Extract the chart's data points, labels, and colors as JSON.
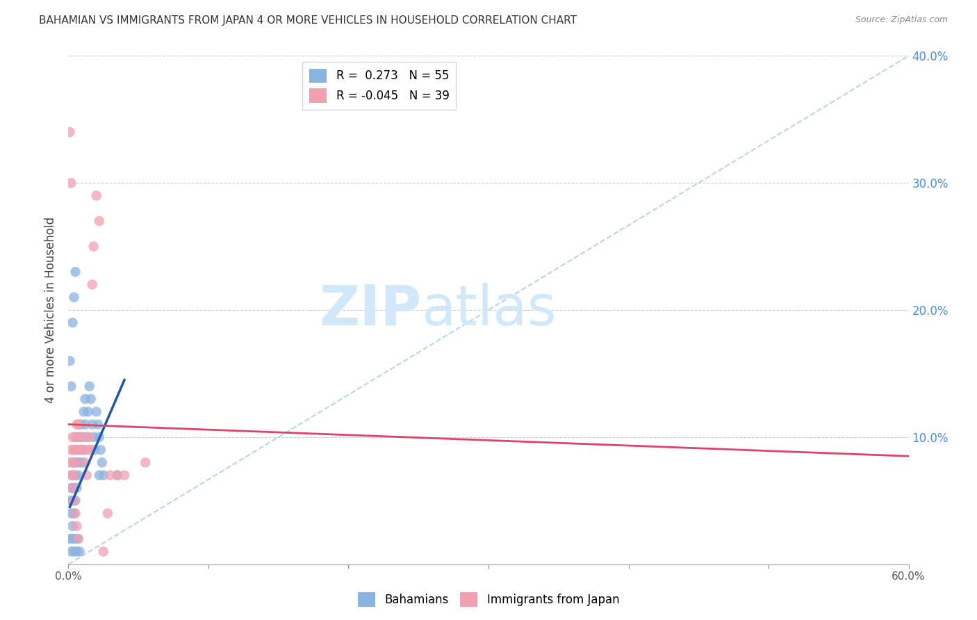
{
  "title": "BAHAMIAN VS IMMIGRANTS FROM JAPAN 4 OR MORE VEHICLES IN HOUSEHOLD CORRELATION CHART",
  "source": "Source: ZipAtlas.com",
  "ylabel": "4 or more Vehicles in Household",
  "xlim": [
    0.0,
    0.6
  ],
  "ylim": [
    0.0,
    0.4
  ],
  "xticks": [
    0.0,
    0.1,
    0.2,
    0.3,
    0.4,
    0.5,
    0.6
  ],
  "xticklabels_show": [
    "0.0%",
    "60.0%"
  ],
  "xticklabels_pos": [
    0.0,
    0.6
  ],
  "yticks": [
    0.1,
    0.2,
    0.3,
    0.4
  ],
  "yticklabels": [
    "10.0%",
    "20.0%",
    "30.0%",
    "40.0%"
  ],
  "blue_R": 0.273,
  "blue_N": 55,
  "pink_R": -0.045,
  "pink_N": 39,
  "blue_color": "#8ab4e0",
  "pink_color": "#f0a0b0",
  "blue_line_color": "#2255aa",
  "pink_line_color": "#dd4466",
  "ref_line_color": "#b8d4ee",
  "watermark_zip": "ZIP",
  "watermark_atlas": "atlas",
  "watermark_color": "#d0e8f8",
  "blue_scatter_x": [
    0.001,
    0.002,
    0.002,
    0.003,
    0.003,
    0.003,
    0.004,
    0.004,
    0.004,
    0.005,
    0.005,
    0.005,
    0.006,
    0.006,
    0.006,
    0.007,
    0.007,
    0.008,
    0.008,
    0.009,
    0.009,
    0.01,
    0.01,
    0.011,
    0.011,
    0.012,
    0.012,
    0.013,
    0.014,
    0.015,
    0.016,
    0.017,
    0.018,
    0.019,
    0.02,
    0.021,
    0.022,
    0.023,
    0.024,
    0.025,
    0.001,
    0.002,
    0.003,
    0.004,
    0.005,
    0.006,
    0.007,
    0.008,
    0.022,
    0.035,
    0.001,
    0.002,
    0.003,
    0.004,
    0.005
  ],
  "blue_scatter_y": [
    0.05,
    0.04,
    0.06,
    0.03,
    0.05,
    0.07,
    0.04,
    0.06,
    0.08,
    0.05,
    0.07,
    0.09,
    0.06,
    0.08,
    0.1,
    0.07,
    0.09,
    0.08,
    0.1,
    0.09,
    0.11,
    0.08,
    0.1,
    0.12,
    0.09,
    0.13,
    0.11,
    0.1,
    0.12,
    0.14,
    0.13,
    0.11,
    0.1,
    0.09,
    0.12,
    0.11,
    0.1,
    0.09,
    0.08,
    0.07,
    0.02,
    0.01,
    0.02,
    0.01,
    0.02,
    0.01,
    0.02,
    0.01,
    0.07,
    0.07,
    0.16,
    0.14,
    0.19,
    0.21,
    0.23
  ],
  "pink_scatter_x": [
    0.001,
    0.002,
    0.002,
    0.003,
    0.003,
    0.004,
    0.004,
    0.005,
    0.005,
    0.006,
    0.006,
    0.007,
    0.007,
    0.008,
    0.009,
    0.01,
    0.011,
    0.012,
    0.013,
    0.014,
    0.015,
    0.016,
    0.017,
    0.018,
    0.02,
    0.022,
    0.025,
    0.028,
    0.035,
    0.03,
    0.001,
    0.002,
    0.003,
    0.004,
    0.005,
    0.006,
    0.007,
    0.04,
    0.055
  ],
  "pink_scatter_y": [
    0.08,
    0.07,
    0.09,
    0.08,
    0.1,
    0.09,
    0.07,
    0.1,
    0.08,
    0.09,
    0.11,
    0.09,
    0.11,
    0.1,
    0.09,
    0.1,
    0.09,
    0.08,
    0.07,
    0.09,
    0.1,
    0.09,
    0.22,
    0.25,
    0.29,
    0.27,
    0.01,
    0.04,
    0.07,
    0.07,
    0.34,
    0.3,
    0.06,
    0.05,
    0.04,
    0.03,
    0.02,
    0.07,
    0.08
  ],
  "blue_trend_x0": 0.001,
  "blue_trend_x1": 0.04,
  "blue_trend_y0": 0.045,
  "blue_trend_y1": 0.145,
  "pink_trend_x0": 0.0,
  "pink_trend_x1": 0.6,
  "pink_trend_y0": 0.11,
  "pink_trend_y1": 0.085,
  "ref_line_x0": 0.0,
  "ref_line_x1": 0.6,
  "ref_line_y0": 0.0,
  "ref_line_y1": 0.4
}
